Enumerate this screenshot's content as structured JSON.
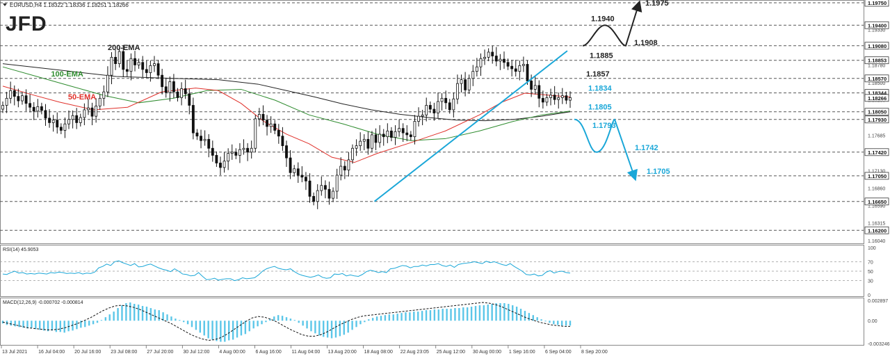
{
  "header": {
    "symbol_info": "EURUSD,H4  1.18322 1.18336 1.18251 1.18266"
  },
  "brand": {
    "logo_text": "JFD"
  },
  "colors": {
    "candle": "#111111",
    "ema200": "#222222",
    "ema100": "#2e8b2e",
    "ema50": "#e0302a",
    "trendline": "#1aa7d8",
    "level_line": "#555555",
    "scenario_up": "#222222",
    "scenario_down": "#1aa7d8",
    "rsi": "#1aa7d8",
    "macd_hist": "#5bc6e8",
    "macd_signal": "#111111"
  },
  "chart_data": [
    {
      "type": "candlestick",
      "title": "",
      "ylim": [
        1.1604,
        1.1975
      ],
      "y_ticks": [
        "1.19750",
        "1.19330",
        "1.18780",
        "1.18500",
        "1.18235",
        "1.17960",
        "1.17685",
        "1.17130",
        "1.16860",
        "1.16590",
        "1.16315",
        "1.16040"
      ],
      "price_axis_labels": [
        {
          "text": "1.19750",
          "value": 1.1975,
          "boxed": true
        },
        {
          "text": "1.19400",
          "value": 1.194,
          "boxed": true
        },
        {
          "text": "1.19080",
          "value": 1.1908,
          "boxed": true
        },
        {
          "text": "1.18853",
          "value": 1.18853,
          "boxed": true
        },
        {
          "text": "1.18570",
          "value": 1.1857,
          "boxed": true
        },
        {
          "text": "1.18344",
          "value": 1.18344,
          "boxed": true
        },
        {
          "text": "1.18266",
          "value": 1.18266,
          "boxed": true
        },
        {
          "text": "1.18050",
          "value": 1.1805,
          "boxed": true
        },
        {
          "text": "1.17930",
          "value": 1.1793,
          "boxed": true
        },
        {
          "text": "1.17420",
          "value": 1.1742,
          "boxed": true
        },
        {
          "text": "1.17050",
          "value": 1.1705,
          "boxed": true
        },
        {
          "text": "1.16650",
          "value": 1.1665,
          "boxed": true
        },
        {
          "text": "1.16200",
          "value": 1.162,
          "boxed": true
        }
      ],
      "levels": [
        1.1975,
        1.194,
        1.1908,
        1.18853,
        1.1857,
        1.18344,
        1.1805,
        1.1793,
        1.1742,
        1.1705,
        1.1665,
        1.162
      ],
      "x_labels": [
        "13 Jul 2021",
        "16 Jul 04:00",
        "20 Jul 16:00",
        "23 Jul 08:00",
        "27 Jul 20:00",
        "30 Jul 12:00",
        "4 Aug 00:00",
        "6 Aug 16:00",
        "11 Aug 04:00",
        "13 Aug 20:00",
        "18 Aug 08:00",
        "22 Aug 23:05",
        "25 Aug 12:00",
        "30 Aug 00:00",
        "1 Sep 16:00",
        "6 Sep 04:00",
        "8 Sep 20:00"
      ],
      "closes": [
        1.1815,
        1.1826,
        1.1838,
        1.1829,
        1.1822,
        1.183,
        1.1818,
        1.1812,
        1.1806,
        1.1813,
        1.1807,
        1.1795,
        1.1788,
        1.1792,
        1.1781,
        1.1776,
        1.1786,
        1.1793,
        1.1799,
        1.1788,
        1.1796,
        1.1808,
        1.1811,
        1.1798,
        1.1814,
        1.1826,
        1.1836,
        1.1862,
        1.189,
        1.188,
        1.1899,
        1.1871,
        1.1868,
        1.1888,
        1.1878,
        1.1882,
        1.1871,
        1.1866,
        1.1877,
        1.188,
        1.1862,
        1.1844,
        1.1835,
        1.1852,
        1.1836,
        1.1827,
        1.1841,
        1.1833,
        1.1815,
        1.1772,
        1.1767,
        1.176,
        1.1762,
        1.1748,
        1.1737,
        1.1725,
        1.1718,
        1.1728,
        1.174,
        1.1742,
        1.1737,
        1.1746,
        1.1748,
        1.1742,
        1.1748,
        1.1794,
        1.1801,
        1.1792,
        1.1782,
        1.1786,
        1.1776,
        1.1767,
        1.1752,
        1.1733,
        1.171,
        1.1716,
        1.1706,
        1.1703,
        1.1697,
        1.1673,
        1.1665,
        1.1682,
        1.169,
        1.1684,
        1.167,
        1.1681,
        1.1706,
        1.172,
        1.1714,
        1.173,
        1.1748,
        1.1752,
        1.1759,
        1.1762,
        1.1748,
        1.1769,
        1.1757,
        1.177,
        1.1766,
        1.1775,
        1.1765,
        1.1774,
        1.1779,
        1.1772,
        1.1769,
        1.1766,
        1.179,
        1.1798,
        1.18,
        1.1815,
        1.1809,
        1.1803,
        1.1821,
        1.1826,
        1.1819,
        1.1808,
        1.1825,
        1.1849,
        1.1855,
        1.1839,
        1.1857,
        1.1868,
        1.1875,
        1.1888,
        1.189,
        1.1898,
        1.1892,
        1.1884,
        1.1887,
        1.1882,
        1.1876,
        1.1872,
        1.1868,
        1.1877,
        1.1879,
        1.1853,
        1.184,
        1.1846,
        1.1826,
        1.182,
        1.1827,
        1.1831,
        1.1824,
        1.1827,
        1.183,
        1.1823,
        1.1827
      ],
      "ema200": [
        {
          "x": 0,
          "y": 1.188
        },
        {
          "x": 0.1,
          "y": 1.187
        },
        {
          "x": 0.2,
          "y": 1.186
        },
        {
          "x": 0.3,
          "y": 1.1857
        },
        {
          "x": 0.38,
          "y": 1.1855
        },
        {
          "x": 0.45,
          "y": 1.1848
        },
        {
          "x": 0.5,
          "y": 1.1838
        },
        {
          "x": 0.55,
          "y": 1.1828
        },
        {
          "x": 0.6,
          "y": 1.1817
        },
        {
          "x": 0.65,
          "y": 1.1808
        },
        {
          "x": 0.7,
          "y": 1.1801
        },
        {
          "x": 0.75,
          "y": 1.1796
        },
        {
          "x": 0.8,
          "y": 1.1792
        },
        {
          "x": 0.85,
          "y": 1.1791
        },
        {
          "x": 0.9,
          "y": 1.1793
        },
        {
          "x": 0.95,
          "y": 1.1798
        },
        {
          "x": 1.0,
          "y": 1.1805
        }
      ],
      "ema100": [
        {
          "x": 0,
          "y": 1.1875
        },
        {
          "x": 0.06,
          "y": 1.186
        },
        {
          "x": 0.12,
          "y": 1.1845
        },
        {
          "x": 0.18,
          "y": 1.183
        },
        {
          "x": 0.24,
          "y": 1.1819
        },
        {
          "x": 0.3,
          "y": 1.1826
        },
        {
          "x": 0.36,
          "y": 1.1838
        },
        {
          "x": 0.42,
          "y": 1.184
        },
        {
          "x": 0.48,
          "y": 1.1823
        },
        {
          "x": 0.54,
          "y": 1.18
        },
        {
          "x": 0.6,
          "y": 1.1786
        },
        {
          "x": 0.66,
          "y": 1.177
        },
        {
          "x": 0.72,
          "y": 1.176
        },
        {
          "x": 0.78,
          "y": 1.1763
        },
        {
          "x": 0.84,
          "y": 1.1775
        },
        {
          "x": 0.9,
          "y": 1.179
        },
        {
          "x": 0.95,
          "y": 1.18
        },
        {
          "x": 1.0,
          "y": 1.1806
        }
      ],
      "ema50": [
        {
          "x": 0,
          "y": 1.1845
        },
        {
          "x": 0.05,
          "y": 1.1832
        },
        {
          "x": 0.1,
          "y": 1.182
        },
        {
          "x": 0.16,
          "y": 1.1808
        },
        {
          "x": 0.22,
          "y": 1.1812
        },
        {
          "x": 0.28,
          "y": 1.1836
        },
        {
          "x": 0.34,
          "y": 1.1842
        },
        {
          "x": 0.38,
          "y": 1.1838
        },
        {
          "x": 0.42,
          "y": 1.1818
        },
        {
          "x": 0.46,
          "y": 1.179
        },
        {
          "x": 0.5,
          "y": 1.177
        },
        {
          "x": 0.54,
          "y": 1.1755
        },
        {
          "x": 0.58,
          "y": 1.1734
        },
        {
          "x": 0.62,
          "y": 1.1726
        },
        {
          "x": 0.66,
          "y": 1.174
        },
        {
          "x": 0.72,
          "y": 1.1757
        },
        {
          "x": 0.78,
          "y": 1.1775
        },
        {
          "x": 0.84,
          "y": 1.18
        },
        {
          "x": 0.88,
          "y": 1.182
        },
        {
          "x": 0.92,
          "y": 1.1834
        },
        {
          "x": 0.96,
          "y": 1.1831
        },
        {
          "x": 1.0,
          "y": 1.1828
        }
      ],
      "trendline": {
        "from": {
          "x": 0.655,
          "y": 1.1665
        },
        "to": {
          "x": 0.995,
          "y": 1.19
        }
      },
      "series_labels": [
        {
          "name": "200-EMA",
          "at": {
            "x": 0.185,
            "y": 1.1901
          },
          "color": "ema200"
        },
        {
          "name": "100-EMA",
          "at": {
            "x": 0.085,
            "y": 1.186
          },
          "color": "ema100"
        },
        {
          "name": "50-EMA",
          "at": {
            "x": 0.115,
            "y": 1.1824
          },
          "color": "ema50"
        }
      ],
      "scenario_up": {
        "path_values": [
          1.1908,
          1.194,
          1.1908,
          1.1975
        ],
        "labels": [
          {
            "text": "1.1940",
            "value": 1.194
          },
          {
            "text": "1.1908",
            "value": 1.1908
          },
          {
            "text": "1.1975",
            "value": 1.1975
          },
          {
            "text": "1.1885",
            "value": 1.18853
          },
          {
            "text": "1.1857",
            "value": 1.1857
          }
        ]
      },
      "scenario_down": {
        "path_values": [
          1.1793,
          1.1742,
          1.1793,
          1.1705
        ],
        "labels": [
          {
            "text": "1.1834",
            "value": 1.18344
          },
          {
            "text": "1.1805",
            "value": 1.1805
          },
          {
            "text": "1.1793",
            "value": 1.1793
          },
          {
            "text": "1.1742",
            "value": 1.1742
          },
          {
            "text": "1.1705",
            "value": 1.1705
          }
        ]
      }
    },
    {
      "type": "line",
      "title": "RSI(14) 45.9053",
      "ylim": [
        0,
        100
      ],
      "y_ticks": [
        "100",
        "70",
        "50",
        "30",
        "0"
      ],
      "levels": [
        70,
        50,
        30
      ],
      "values": [
        44,
        43,
        47,
        50,
        46,
        47,
        44,
        45,
        44,
        46,
        45,
        44,
        47,
        46,
        48,
        47,
        45,
        46,
        45,
        47,
        44,
        46,
        45,
        48,
        57,
        60,
        65,
        62,
        70,
        72,
        68,
        65,
        62,
        66,
        59,
        60,
        63,
        65,
        61,
        57,
        54,
        52,
        49,
        55,
        50,
        44,
        43,
        40,
        41,
        47,
        39,
        32,
        33,
        35,
        31,
        33,
        34,
        34,
        30,
        32,
        36,
        34,
        35,
        36,
        42,
        50,
        55,
        58,
        60,
        56,
        54,
        53,
        55,
        49,
        44,
        41,
        39,
        37,
        39,
        42,
        37,
        35,
        36,
        44,
        43,
        45,
        40,
        42,
        40,
        39,
        43,
        49,
        52,
        50,
        47,
        49,
        47,
        55,
        56,
        59,
        62,
        61,
        57,
        60,
        60,
        63,
        61,
        64,
        64,
        66,
        62,
        60,
        63,
        58,
        64,
        66,
        67,
        68,
        70,
        68,
        66,
        71,
        68,
        70,
        67,
        64,
        62,
        66,
        60,
        55,
        50,
        43,
        42,
        44,
        40,
        41,
        48,
        51,
        46,
        49,
        50,
        47,
        46
      ]
    },
    {
      "type": "bar",
      "title": "MACD(12,26,9) -0.000702 -0.000814",
      "ylim": [
        -0.003246,
        0.002897
      ],
      "y_ticks": [
        "0.002897",
        "0.00",
        "-0.003246"
      ],
      "histogram": [
        -0.0004,
        -0.0006,
        -0.0007,
        -0.0008,
        -0.0009,
        -0.001,
        -0.0011,
        -0.001,
        -0.0012,
        -0.0013,
        -0.0014,
        -0.0015,
        -0.0014,
        -0.0016,
        -0.0016,
        -0.0017,
        -0.0015,
        -0.0014,
        -0.0012,
        -0.001,
        -0.0009,
        -0.0007,
        -0.0005,
        -0.0003,
        0.0001,
        0.0005,
        0.0009,
        0.0013,
        0.0018,
        0.0022,
        0.0025,
        0.0026,
        0.0024,
        0.0023,
        0.0021,
        0.002,
        0.0018,
        0.0016,
        0.0015,
        0.0012,
        0.0009,
        0.0006,
        0.0003,
        0.0001,
        -0.0002,
        -0.0005,
        -0.0009,
        -0.0013,
        -0.0017,
        -0.0021,
        -0.0025,
        -0.0027,
        -0.0029,
        -0.003,
        -0.003,
        -0.0028,
        -0.0027,
        -0.0024,
        -0.0021,
        -0.0019,
        -0.0015,
        -0.0011,
        -0.0008,
        -0.0005,
        -0.0002,
        0.0003,
        0.0006,
        0.0008,
        0.0007,
        0.0005,
        0.0003,
        0.0001,
        -0.0003,
        -0.0007,
        -0.0011,
        -0.0015,
        -0.0018,
        -0.0021,
        -0.0023,
        -0.0024,
        -0.0025,
        -0.0024,
        -0.0022,
        -0.002,
        -0.0017,
        -0.0013,
        -0.0009,
        -0.0005,
        -0.0002,
        0.0002,
        0.0004,
        0.0006,
        0.0007,
        0.0008,
        0.0009,
        0.0009,
        0.001,
        0.0011,
        0.0012,
        0.0012,
        0.0013,
        0.0013,
        0.0014,
        0.0015,
        0.0015,
        0.0016,
        0.0016,
        0.0017,
        0.0017,
        0.0017,
        0.0018,
        0.0018,
        0.0019,
        0.0019,
        0.002,
        0.0021,
        0.0022,
        0.0022,
        0.0023,
        0.0024,
        0.0025,
        0.0025,
        0.0025,
        0.0024,
        0.0022,
        0.002,
        0.0017,
        0.0014,
        0.0011,
        0.0008,
        0.0005,
        0.0002,
        -0.0001,
        -0.0003,
        -0.0005,
        -0.0006,
        -0.0007,
        -0.0007,
        -0.0007
      ],
      "signal": [
        -0.0002,
        -0.0004,
        -0.0006,
        -0.0008,
        -0.001,
        -0.0011,
        -0.0012,
        -0.0013,
        -0.0013,
        -0.0012,
        -0.001,
        -0.0007,
        -0.0004,
        0.0,
        0.0004,
        0.0009,
        0.0014,
        0.0018,
        0.0021,
        0.0022,
        0.0021,
        0.0019,
        0.0016,
        0.0012,
        0.0008,
        0.0004,
        0.0,
        -0.0004,
        -0.0009,
        -0.0014,
        -0.0019,
        -0.0023,
        -0.0026,
        -0.0028,
        -0.0027,
        -0.0024,
        -0.0019,
        -0.0013,
        -0.0007,
        -0.0001,
        0.0004,
        0.0006,
        0.0005,
        0.0002,
        -0.0002,
        -0.0007,
        -0.0012,
        -0.0016,
        -0.002,
        -0.0022,
        -0.0022,
        -0.002,
        -0.0016,
        -0.0011,
        -0.0006,
        -0.0002,
        0.0002,
        0.0005,
        0.0007,
        0.0008,
        0.0009,
        0.001,
        0.0011,
        0.0012,
        0.0013,
        0.0014,
        0.0015,
        0.0016,
        0.0017,
        0.0018,
        0.0019,
        0.002,
        0.0021,
        0.0022,
        0.0023,
        0.0024,
        0.0025,
        0.0026,
        0.0025,
        0.0023,
        0.002,
        0.0016,
        0.0012,
        0.0008,
        0.0004,
        0.0001,
        -0.0002,
        -0.0004,
        -0.0006,
        -0.0007,
        -0.0008,
        -0.0008
      ]
    }
  ]
}
